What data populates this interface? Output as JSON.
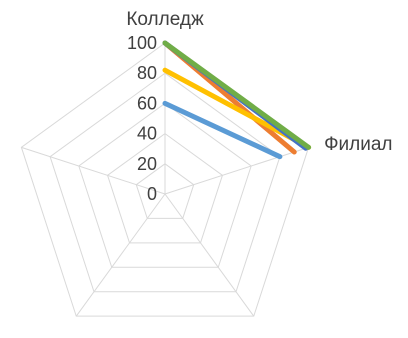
{
  "chart_data": {
    "type": "radar",
    "axes": [
      "Колледж",
      "Филиал",
      "",
      "",
      ""
    ],
    "rlim": [
      0,
      100
    ],
    "rticks": [
      "100",
      "80",
      "60",
      "40",
      "20",
      "0"
    ],
    "grid": true,
    "legend": "none",
    "series": [
      {
        "color": "#5b9bd5",
        "values": [
          60,
          80,
          0,
          0,
          0
        ]
      },
      {
        "color": "#ed7d31",
        "values": [
          100,
          90,
          0,
          0,
          0
        ]
      },
      {
        "color": "#ffc000",
        "values": [
          82,
          100,
          0,
          0,
          0
        ]
      },
      {
        "color": "#4472c4",
        "values": [
          100,
          98,
          0,
          0,
          0
        ]
      },
      {
        "color": "#70ad47",
        "values": [
          100,
          100,
          0,
          0,
          0
        ]
      }
    ]
  }
}
